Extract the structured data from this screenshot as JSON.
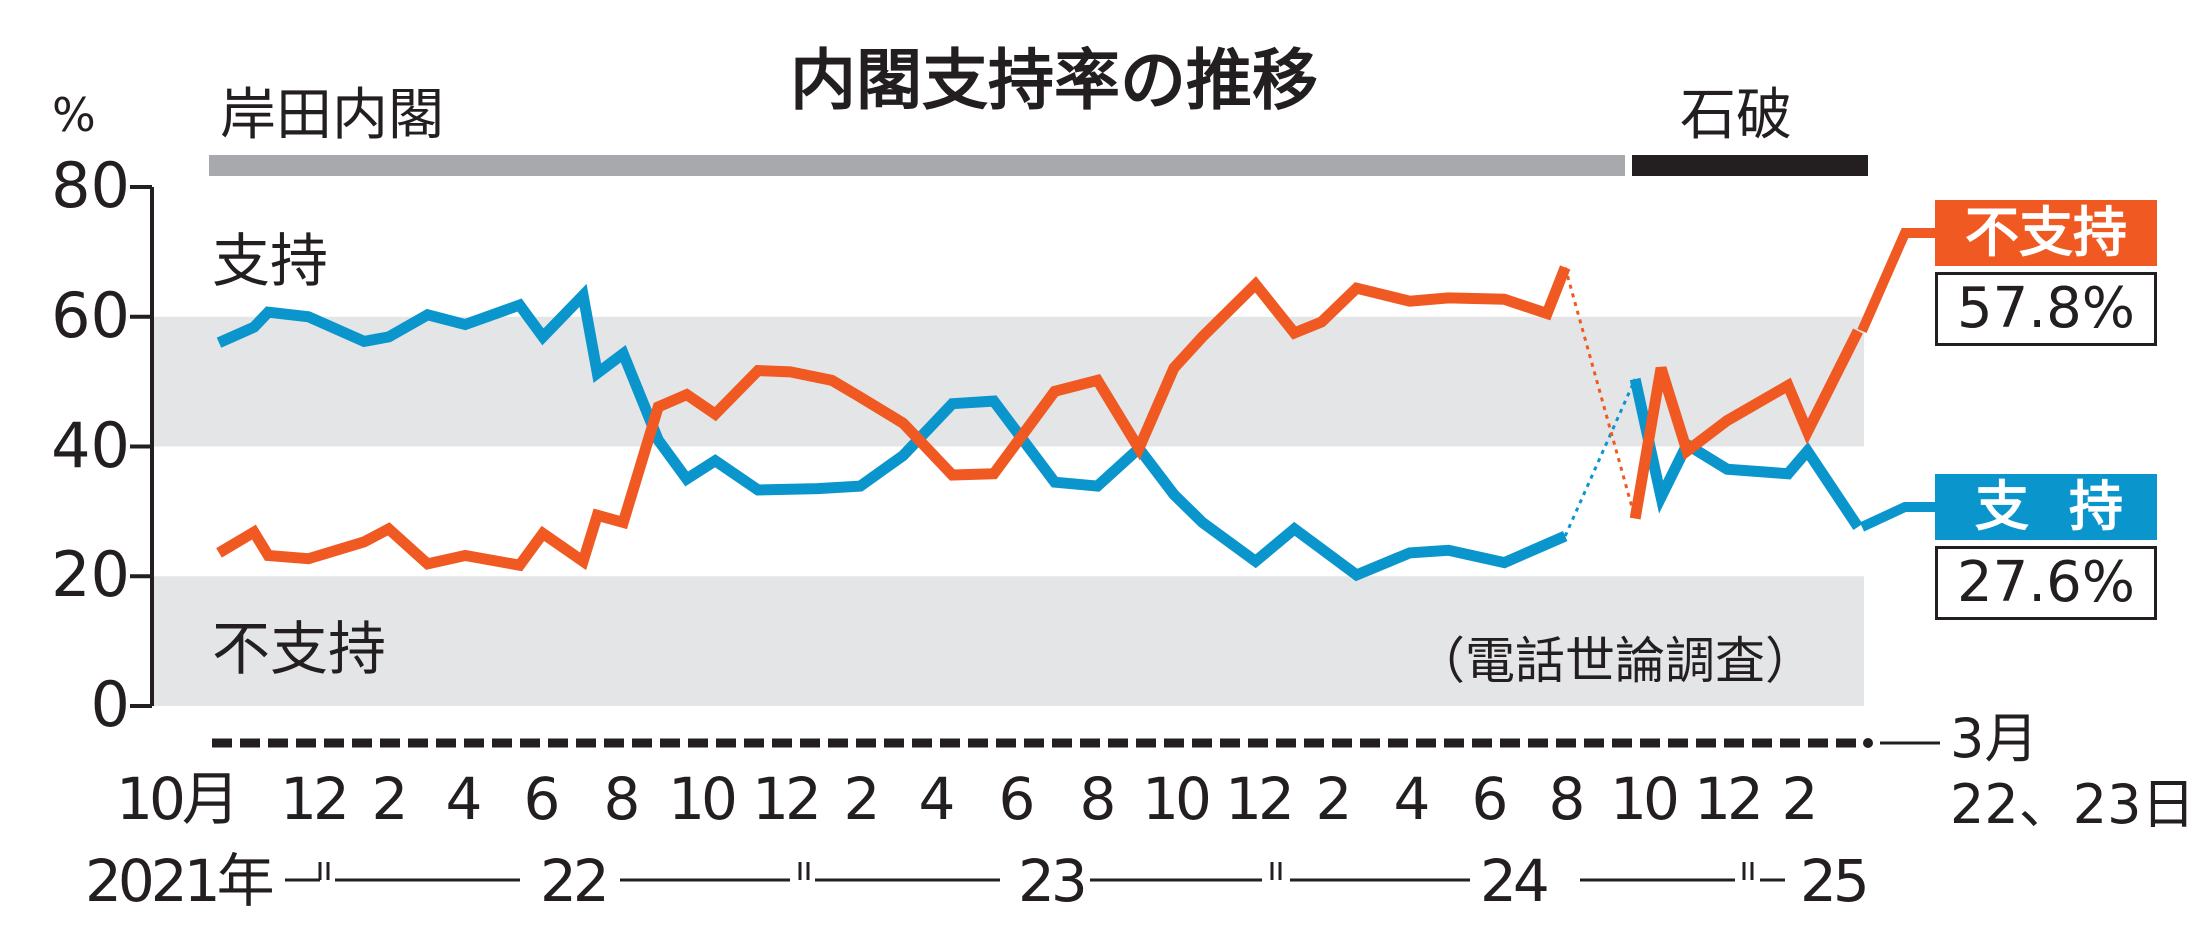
{
  "chart_data": {
    "type": "line",
    "title": "内閣支持率の推移",
    "ylabel": "%",
    "ylim": [
      0,
      80
    ],
    "yticks": [
      "80",
      "60",
      "40",
      "20",
      "0"
    ],
    "grid": "shaded bands 0–20 and 40–60",
    "cabinets": [
      {
        "name": "岸田内閣",
        "color": "#a7a9ac"
      },
      {
        "name": "石破",
        "color": "#231f20"
      }
    ],
    "xtick_months": [
      "10月",
      "12",
      "2",
      "4",
      "6",
      "8",
      "10",
      "12",
      "2",
      "4",
      "6",
      "8",
      "10",
      "12",
      "2",
      "4",
      "6",
      "8",
      "10",
      "12",
      "2"
    ],
    "xtick_years": [
      "2021年",
      "22",
      "23",
      "24",
      "25"
    ],
    "end_date_label": [
      "3月",
      "22、23日"
    ],
    "note": "（電話世論調査）",
    "series": [
      {
        "name": "支持",
        "color": "#0a96cc",
        "final_label": "27.6%",
        "points": [
          [
            "2021-10-04",
            56
          ],
          [
            "2021-10-31",
            58.4
          ],
          [
            "2021-11-11",
            60.7
          ],
          [
            "2021-12-12",
            60
          ],
          [
            "2022-01-24",
            56.2
          ],
          [
            "2022-02-12",
            56.9
          ],
          [
            "2022-03-14",
            60.3
          ],
          [
            "2022-04-12",
            58.8
          ],
          [
            "2022-05-24",
            61.8
          ],
          [
            "2022-06-11",
            56.9
          ],
          [
            "2022-07-12",
            63.3
          ],
          [
            "2022-07-23",
            51.3
          ],
          [
            "2022-08-12",
            54.3
          ],
          [
            "2022-09-08",
            41
          ],
          [
            "2022-09-30",
            35
          ],
          [
            "2022-10-22",
            37.8
          ],
          [
            "2022-11-24",
            33.3
          ],
          [
            "2023-01-09",
            33.5
          ],
          [
            "2023-02-11",
            33.9
          ],
          [
            "2023-03-16",
            38.6
          ],
          [
            "2023-04-23",
            46.6
          ],
          [
            "2023-05-25",
            47
          ],
          [
            "2023-07-11",
            34.5
          ],
          [
            "2023-08-13",
            33.9
          ],
          [
            "2023-09-14",
            39.7
          ],
          [
            "2023-10-11",
            32.6
          ],
          [
            "2023-11-02",
            28.3
          ],
          [
            "2023-12-13",
            22.3
          ],
          [
            "2024-01-12",
            27.3
          ],
          [
            "2024-02-29",
            20.2
          ],
          [
            "2024-04-10",
            23.6
          ],
          [
            "2024-05-10",
            24
          ],
          [
            "2024-06-22",
            22.1
          ],
          [
            "2024-08-08",
            26.2
          ],
          [
            "2024-10-01",
            50.4
          ],
          [
            "2024-10-21",
            32.2
          ],
          [
            "2024-11-10",
            40.3
          ],
          [
            "2024-12-11",
            36.5
          ],
          [
            "2025-01-27",
            35.8
          ],
          [
            "2025-02-11",
            39.3
          ],
          [
            "2025-03-22",
            27.6
          ]
        ]
      },
      {
        "name": "不支持",
        "color": "#f05a22",
        "final_label": "57.8%",
        "points": [
          [
            "2021-10-04",
            23.6
          ],
          [
            "2021-10-31",
            26.8
          ],
          [
            "2021-11-11",
            23.2
          ],
          [
            "2021-12-12",
            22.7
          ],
          [
            "2022-01-24",
            25.3
          ],
          [
            "2022-02-12",
            27.3
          ],
          [
            "2022-03-14",
            21.9
          ],
          [
            "2022-04-12",
            23.2
          ],
          [
            "2022-05-24",
            21.7
          ],
          [
            "2022-06-11",
            26.6
          ],
          [
            "2022-07-12",
            22.3
          ],
          [
            "2022-07-23",
            29.4
          ],
          [
            "2022-08-12",
            28.3
          ],
          [
            "2022-09-08",
            46.1
          ],
          [
            "2022-09-30",
            48
          ],
          [
            "2022-10-22",
            45
          ],
          [
            "2022-11-24",
            51.7
          ],
          [
            "2022-12-19",
            51.5
          ],
          [
            "2023-01-20",
            50.2
          ],
          [
            "2023-02-11",
            47.6
          ],
          [
            "2023-03-16",
            43.6
          ],
          [
            "2023-04-23",
            35.6
          ],
          [
            "2023-05-25",
            35.8
          ],
          [
            "2023-07-11",
            48.5
          ],
          [
            "2023-08-13",
            50.2
          ],
          [
            "2023-09-14",
            39.7
          ],
          [
            "2023-10-11",
            52.1
          ],
          [
            "2023-11-02",
            56.9
          ],
          [
            "2023-12-13",
            65
          ],
          [
            "2024-01-12",
            57.5
          ],
          [
            "2024-02-02",
            59.2
          ],
          [
            "2024-02-29",
            64.4
          ],
          [
            "2024-04-10",
            62.4
          ],
          [
            "2024-05-10",
            62.9
          ],
          [
            "2024-06-22",
            62.7
          ],
          [
            "2024-07-25",
            60.5
          ],
          [
            "2024-08-08",
            67.6
          ],
          [
            "2024-10-01",
            28.9
          ],
          [
            "2024-10-21",
            52.1
          ],
          [
            "2024-11-10",
            39.3
          ],
          [
            "2024-12-11",
            44
          ],
          [
            "2025-01-27",
            49.4
          ],
          [
            "2025-02-11",
            42.3
          ],
          [
            "2025-03-22",
            57.8
          ]
        ]
      }
    ]
  }
}
